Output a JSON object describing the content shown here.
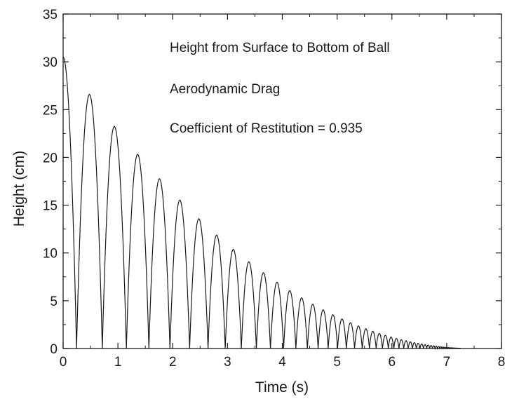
{
  "chart_data": {
    "type": "line",
    "xlabel": "Time (s)",
    "ylabel": "Height (cm)",
    "xlim": [
      0,
      8
    ],
    "ylim": [
      0,
      35
    ],
    "x_ticks": [
      0,
      1,
      2,
      3,
      4,
      5,
      6,
      7,
      8
    ],
    "y_ticks": [
      0,
      5,
      10,
      15,
      20,
      25,
      30,
      35
    ],
    "x_tick_labels": [
      "0",
      "1",
      "2",
      "3",
      "4",
      "5",
      "6",
      "7",
      "8"
    ],
    "y_tick_labels": [
      "0",
      "5",
      "10",
      "15",
      "20",
      "25",
      "30",
      "35"
    ],
    "grid": false,
    "annotations": [
      "Height from Surface to Bottom of Ball",
      "Aerodynamic Drag",
      "Coefficient of Restitution = 0.935"
    ],
    "initial_height": 30.5,
    "first_impact_time": 0.245,
    "coefficient_of_restitution": 0.935,
    "bounce_apex_times": [
      0.48,
      0.93,
      1.36,
      1.76,
      2.13,
      2.48,
      2.81,
      3.12,
      3.4,
      3.67
    ],
    "bounce_peak_heights": [
      26.6,
      23.2,
      20.3,
      17.6,
      15.4,
      13.4,
      11.7,
      10.2,
      8.9,
      7.8
    ],
    "end_time": 7.25,
    "colors": {
      "line": "#1a1a1a",
      "axes": "#1a1a1a",
      "background": "#ffffff"
    }
  }
}
